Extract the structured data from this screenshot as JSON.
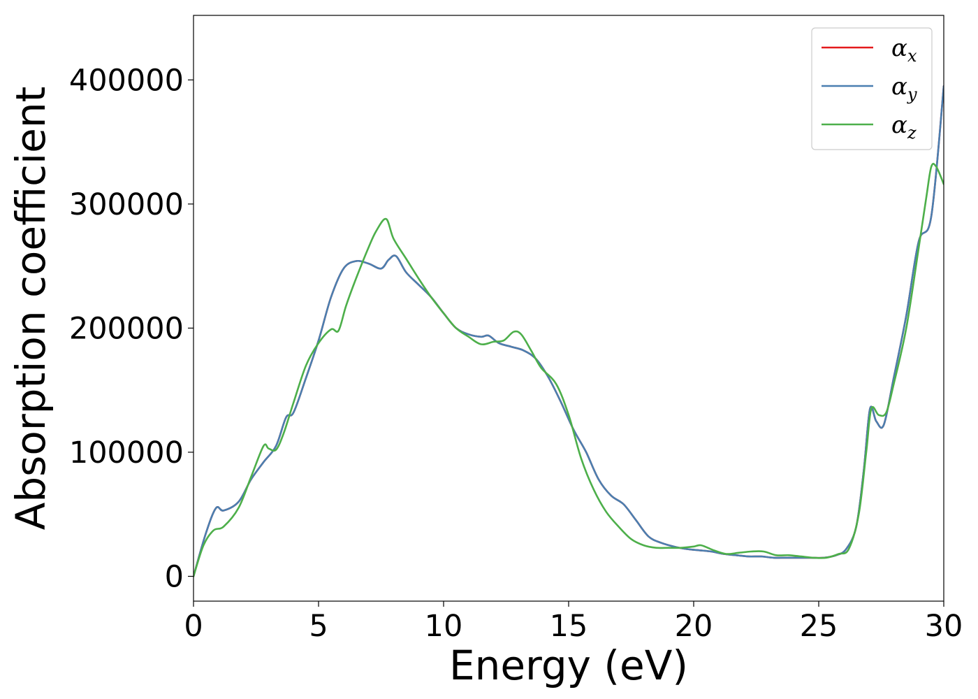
{
  "chart_data": {
    "type": "line",
    "xlabel": "Energy (eV)",
    "ylabel": "Absorption coefficient",
    "xlim": [
      0,
      30
    ],
    "ylim": [
      -20000,
      452000
    ],
    "xticks": [
      0,
      5,
      10,
      15,
      20,
      25,
      30
    ],
    "xtick_labels": [
      "0",
      "5",
      "10",
      "15",
      "20",
      "25",
      "30"
    ],
    "yticks": [
      0,
      100000,
      200000,
      300000,
      400000
    ],
    "ytick_labels": [
      "0",
      "100000",
      "200000",
      "300000",
      "400000"
    ],
    "grid": false,
    "legend_position": "top-right",
    "series": [
      {
        "name": "α",
        "subscript": "x",
        "color": "#e41a1c",
        "x": [
          0,
          0.5,
          0.9,
          1.2,
          1.8,
          2.3,
          2.8,
          3.3,
          3.7,
          4.0,
          4.5,
          5.0,
          5.5,
          6.0,
          6.5,
          7.0,
          7.5,
          7.8,
          8.1,
          8.5,
          9.0,
          9.5,
          10.0,
          10.5,
          11.0,
          11.5,
          11.8,
          12.2,
          12.7,
          13.2,
          13.7,
          14.2,
          14.7,
          15.2,
          15.7,
          16.2,
          16.7,
          17.2,
          17.7,
          18.2,
          18.7,
          19.2,
          19.7,
          20.2,
          20.7,
          21.2,
          21.7,
          22.2,
          22.7,
          23.2,
          23.7,
          24.2,
          24.7,
          25.2,
          25.7,
          26.1,
          26.5,
          26.8,
          27.05,
          27.3,
          27.6,
          28.0,
          28.5,
          29.0,
          29.5,
          30.0
        ],
        "y": [
          0,
          35000,
          55000,
          53000,
          60000,
          78000,
          92000,
          105000,
          128000,
          132000,
          160000,
          190000,
          225000,
          248000,
          254000,
          252000,
          248000,
          255000,
          258000,
          245000,
          235000,
          225000,
          212000,
          200000,
          195000,
          193000,
          194000,
          188000,
          185000,
          182000,
          175000,
          160000,
          140000,
          118000,
          100000,
          78000,
          65000,
          58000,
          45000,
          32000,
          27000,
          24000,
          22000,
          21000,
          20000,
          18000,
          17000,
          16000,
          16000,
          15000,
          15000,
          15000,
          15000,
          15000,
          17000,
          22000,
          40000,
          85000,
          135000,
          125000,
          122000,
          160000,
          210000,
          270000,
          290000,
          395000
        ]
      },
      {
        "name": "α",
        "subscript": "y",
        "color": "#4a7fb0",
        "x": [
          0,
          0.5,
          0.9,
          1.2,
          1.8,
          2.3,
          2.8,
          3.3,
          3.7,
          4.0,
          4.5,
          5.0,
          5.5,
          6.0,
          6.5,
          7.0,
          7.5,
          7.8,
          8.1,
          8.5,
          9.0,
          9.5,
          10.0,
          10.5,
          11.0,
          11.5,
          11.8,
          12.2,
          12.7,
          13.2,
          13.7,
          14.2,
          14.7,
          15.2,
          15.7,
          16.2,
          16.7,
          17.2,
          17.7,
          18.2,
          18.7,
          19.2,
          19.7,
          20.2,
          20.7,
          21.2,
          21.7,
          22.2,
          22.7,
          23.2,
          23.7,
          24.2,
          24.7,
          25.2,
          25.7,
          26.1,
          26.5,
          26.8,
          27.05,
          27.3,
          27.6,
          28.0,
          28.5,
          29.0,
          29.5,
          30.0
        ],
        "y": [
          0,
          35000,
          55000,
          53000,
          60000,
          78000,
          92000,
          105000,
          128000,
          132000,
          160000,
          190000,
          225000,
          248000,
          254000,
          252000,
          248000,
          255000,
          258000,
          245000,
          235000,
          225000,
          212000,
          200000,
          195000,
          193000,
          194000,
          188000,
          185000,
          182000,
          175000,
          160000,
          140000,
          118000,
          100000,
          78000,
          65000,
          58000,
          45000,
          32000,
          27000,
          24000,
          22000,
          21000,
          20000,
          18000,
          17000,
          16000,
          16000,
          15000,
          15000,
          15000,
          15000,
          15000,
          17000,
          22000,
          40000,
          85000,
          135000,
          125000,
          122000,
          160000,
          210000,
          270000,
          290000,
          395000
        ]
      },
      {
        "name": "α",
        "subscript": "z",
        "color": "#4daf4a",
        "x": [
          0,
          0.4,
          0.8,
          1.2,
          1.8,
          2.3,
          2.8,
          3.0,
          3.3,
          3.6,
          4.0,
          4.5,
          5.0,
          5.5,
          5.8,
          6.1,
          6.5,
          7.0,
          7.3,
          7.7,
          8.0,
          8.5,
          9.0,
          9.5,
          10.0,
          10.5,
          11.0,
          11.5,
          12.0,
          12.4,
          12.8,
          13.1,
          13.5,
          13.9,
          14.5,
          15.0,
          15.5,
          16.0,
          16.5,
          17.0,
          17.5,
          18.0,
          18.5,
          19.0,
          19.5,
          20.0,
          20.3,
          20.8,
          21.3,
          21.8,
          22.3,
          22.8,
          23.3,
          23.8,
          24.3,
          24.8,
          25.3,
          25.8,
          26.2,
          26.6,
          26.9,
          27.1,
          27.4,
          27.7,
          28.0,
          28.5,
          29.0,
          29.3,
          29.5,
          29.7,
          30.0
        ],
        "y": [
          0,
          25000,
          37000,
          40000,
          55000,
          80000,
          105000,
          103000,
          102000,
          115000,
          140000,
          170000,
          188000,
          199000,
          198000,
          218000,
          240000,
          265000,
          278000,
          288000,
          272000,
          256000,
          240000,
          225000,
          212000,
          200000,
          193000,
          187000,
          189000,
          190000,
          197000,
          195000,
          182000,
          168000,
          155000,
          130000,
          95000,
          70000,
          52000,
          40000,
          30000,
          25000,
          23000,
          23000,
          23000,
          24000,
          25000,
          21000,
          18000,
          19000,
          20000,
          20000,
          17000,
          17000,
          16000,
          15000,
          15000,
          18000,
          22000,
          50000,
          100000,
          135000,
          130000,
          132000,
          155000,
          200000,
          265000,
          305000,
          330000,
          330000,
          316000
        ]
      }
    ]
  }
}
